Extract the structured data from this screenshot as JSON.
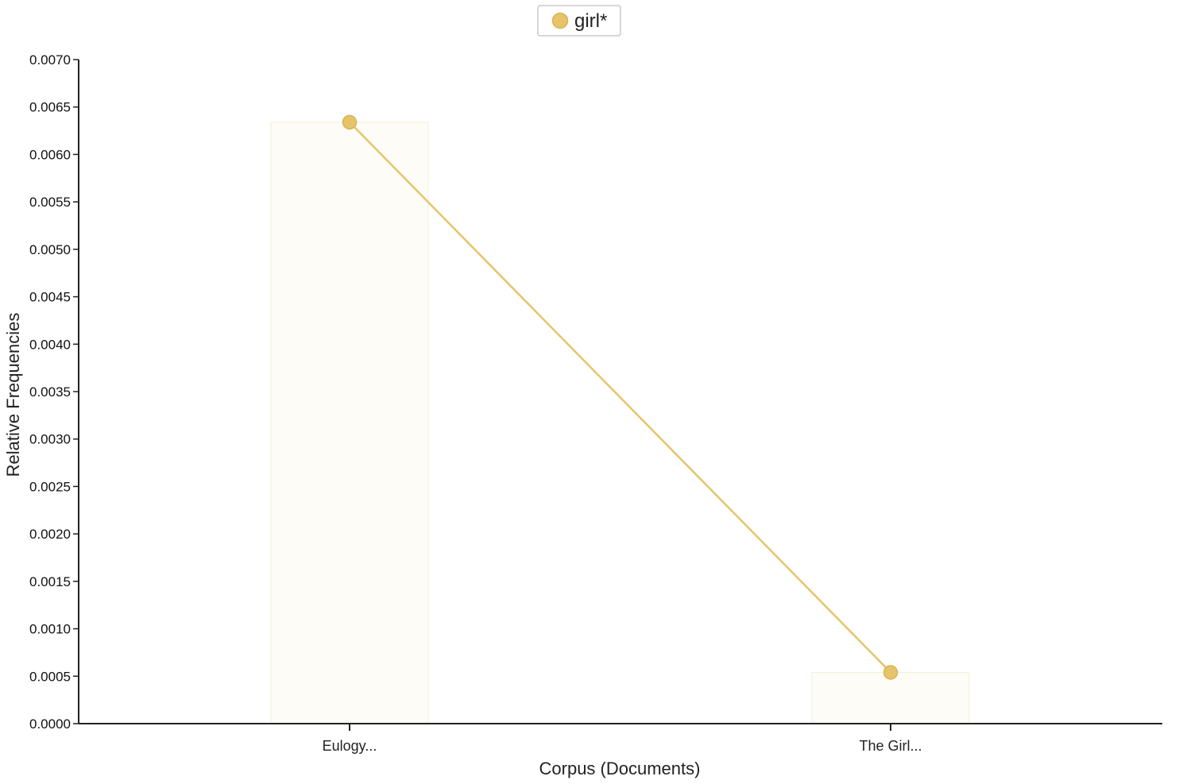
{
  "chart_data": {
    "type": "line",
    "categories": [
      "Eulogy...",
      "The Girl..."
    ],
    "series": [
      {
        "name": "girl*",
        "values": [
          0.00634,
          0.00054
        ],
        "color": "#e6c46a"
      }
    ],
    "bars": {
      "values": [
        0.00634,
        0.00054
      ],
      "color": "#fdfcf6"
    },
    "xlabel": "Corpus (Documents)",
    "ylabel": "Relative Frequencies",
    "ylim": [
      0,
      0.007
    ],
    "yticks": [
      "0.0000",
      "0.0005",
      "0.0010",
      "0.0015",
      "0.0020",
      "0.0025",
      "0.0030",
      "0.0035",
      "0.0040",
      "0.0045",
      "0.0050",
      "0.0055",
      "0.0060",
      "0.0065",
      "0.0070"
    ],
    "grid": false,
    "legend_position": "top-center"
  }
}
